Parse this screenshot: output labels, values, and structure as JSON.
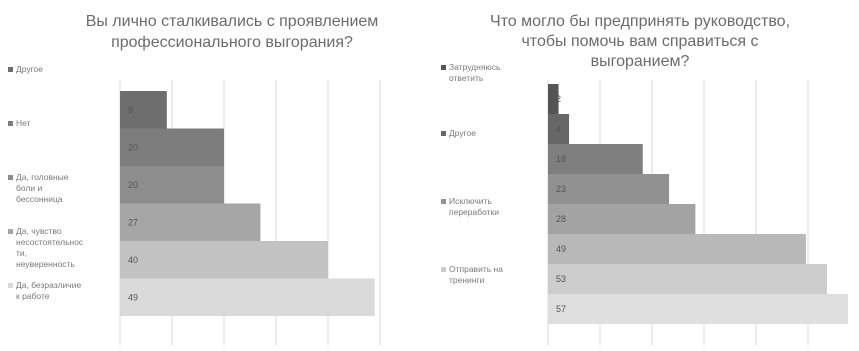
{
  "chart_data": [
    {
      "type": "bar",
      "orientation": "horizontal",
      "title_lines": [
        "Вы лично сталкивались с проявлением",
        "профессионального выгорания?"
      ],
      "bars": [
        {
          "value": 9,
          "label": "9",
          "color": "#6e6e6e"
        },
        {
          "value": 20,
          "label": "20",
          "color": "#7d7d7d"
        },
        {
          "value": 20,
          "label": "20",
          "color": "#8d8d8d"
        },
        {
          "value": 27,
          "label": "27",
          "color": "#a6a6a6"
        },
        {
          "value": 40,
          "label": "40",
          "color": "#c2c2c2"
        },
        {
          "value": 49,
          "label": "49",
          "color": "#dadada"
        }
      ],
      "legend": [
        {
          "lines": [
            "Другое"
          ],
          "color": "#6e6e6e"
        },
        {
          "lines": [
            "Нет"
          ],
          "color": "#7d7d7d"
        },
        {
          "lines": [
            "Да, головные",
            "боли и",
            "бессонница"
          ],
          "color": "#8d8d8d"
        },
        {
          "lines": [
            "Да, чувство",
            "несостоятельнос",
            "ти,",
            "неуверенность"
          ],
          "color": "#a6a6a6"
        },
        {
          "lines": [
            "Да, безразличие",
            "к работе"
          ],
          "color": "#dadada"
        }
      ],
      "xlim": [
        0,
        50
      ],
      "grid": true,
      "legend_position": "left"
    },
    {
      "type": "bar",
      "orientation": "horizontal",
      "title_lines": [
        "Что могло бы предпринять руководство,",
        "чтобы помочь вам справиться с",
        "выгоранием?"
      ],
      "bars": [
        {
          "value": 2,
          "label": "2",
          "color": "#555555"
        },
        {
          "value": 4,
          "label": "4",
          "color": "#676767"
        },
        {
          "value": 18,
          "label": "18",
          "color": "#7e7e7e"
        },
        {
          "value": 23,
          "label": "23",
          "color": "#919191"
        },
        {
          "value": 28,
          "label": "28",
          "color": "#a3a3a3"
        },
        {
          "value": 49,
          "label": "49",
          "color": "#b8b8b8"
        },
        {
          "value": 53,
          "label": "53",
          "color": "#cccccc"
        },
        {
          "value": 57,
          "label": "57",
          "color": "#dedede"
        }
      ],
      "legend": [
        {
          "lines": [
            "Затрудняюсь",
            "ответить"
          ],
          "color": "#555555"
        },
        {
          "lines": [
            "Другое"
          ],
          "color": "#676767"
        },
        {
          "lines": [
            "Исключить",
            "переработки"
          ],
          "color": "#919191"
        },
        {
          "lines": [
            "Отправить на",
            "тренинги"
          ],
          "color": "#cccccc"
        }
      ],
      "xlim": [
        0,
        57
      ],
      "grid": true,
      "legend_position": "left"
    }
  ]
}
